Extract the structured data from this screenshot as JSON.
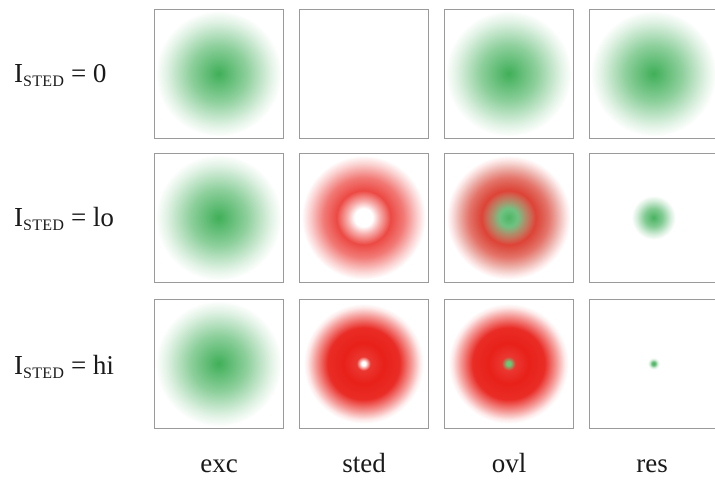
{
  "rows": [
    {
      "label_main": "I",
      "label_sub": "STED",
      "label_rest": " = 0"
    },
    {
      "label_main": "I",
      "label_sub": "STED",
      "label_rest": " = lo"
    },
    {
      "label_main": "I",
      "label_sub": "STED",
      "label_rest": " = hi"
    }
  ],
  "columns": [
    {
      "label": "exc"
    },
    {
      "label": "sted"
    },
    {
      "label": "ovl"
    },
    {
      "label": "res"
    }
  ],
  "colors": {
    "excitation_green": "#2fa84a",
    "depletion_red": "#e8211a",
    "border": "#9a9a9a"
  }
}
